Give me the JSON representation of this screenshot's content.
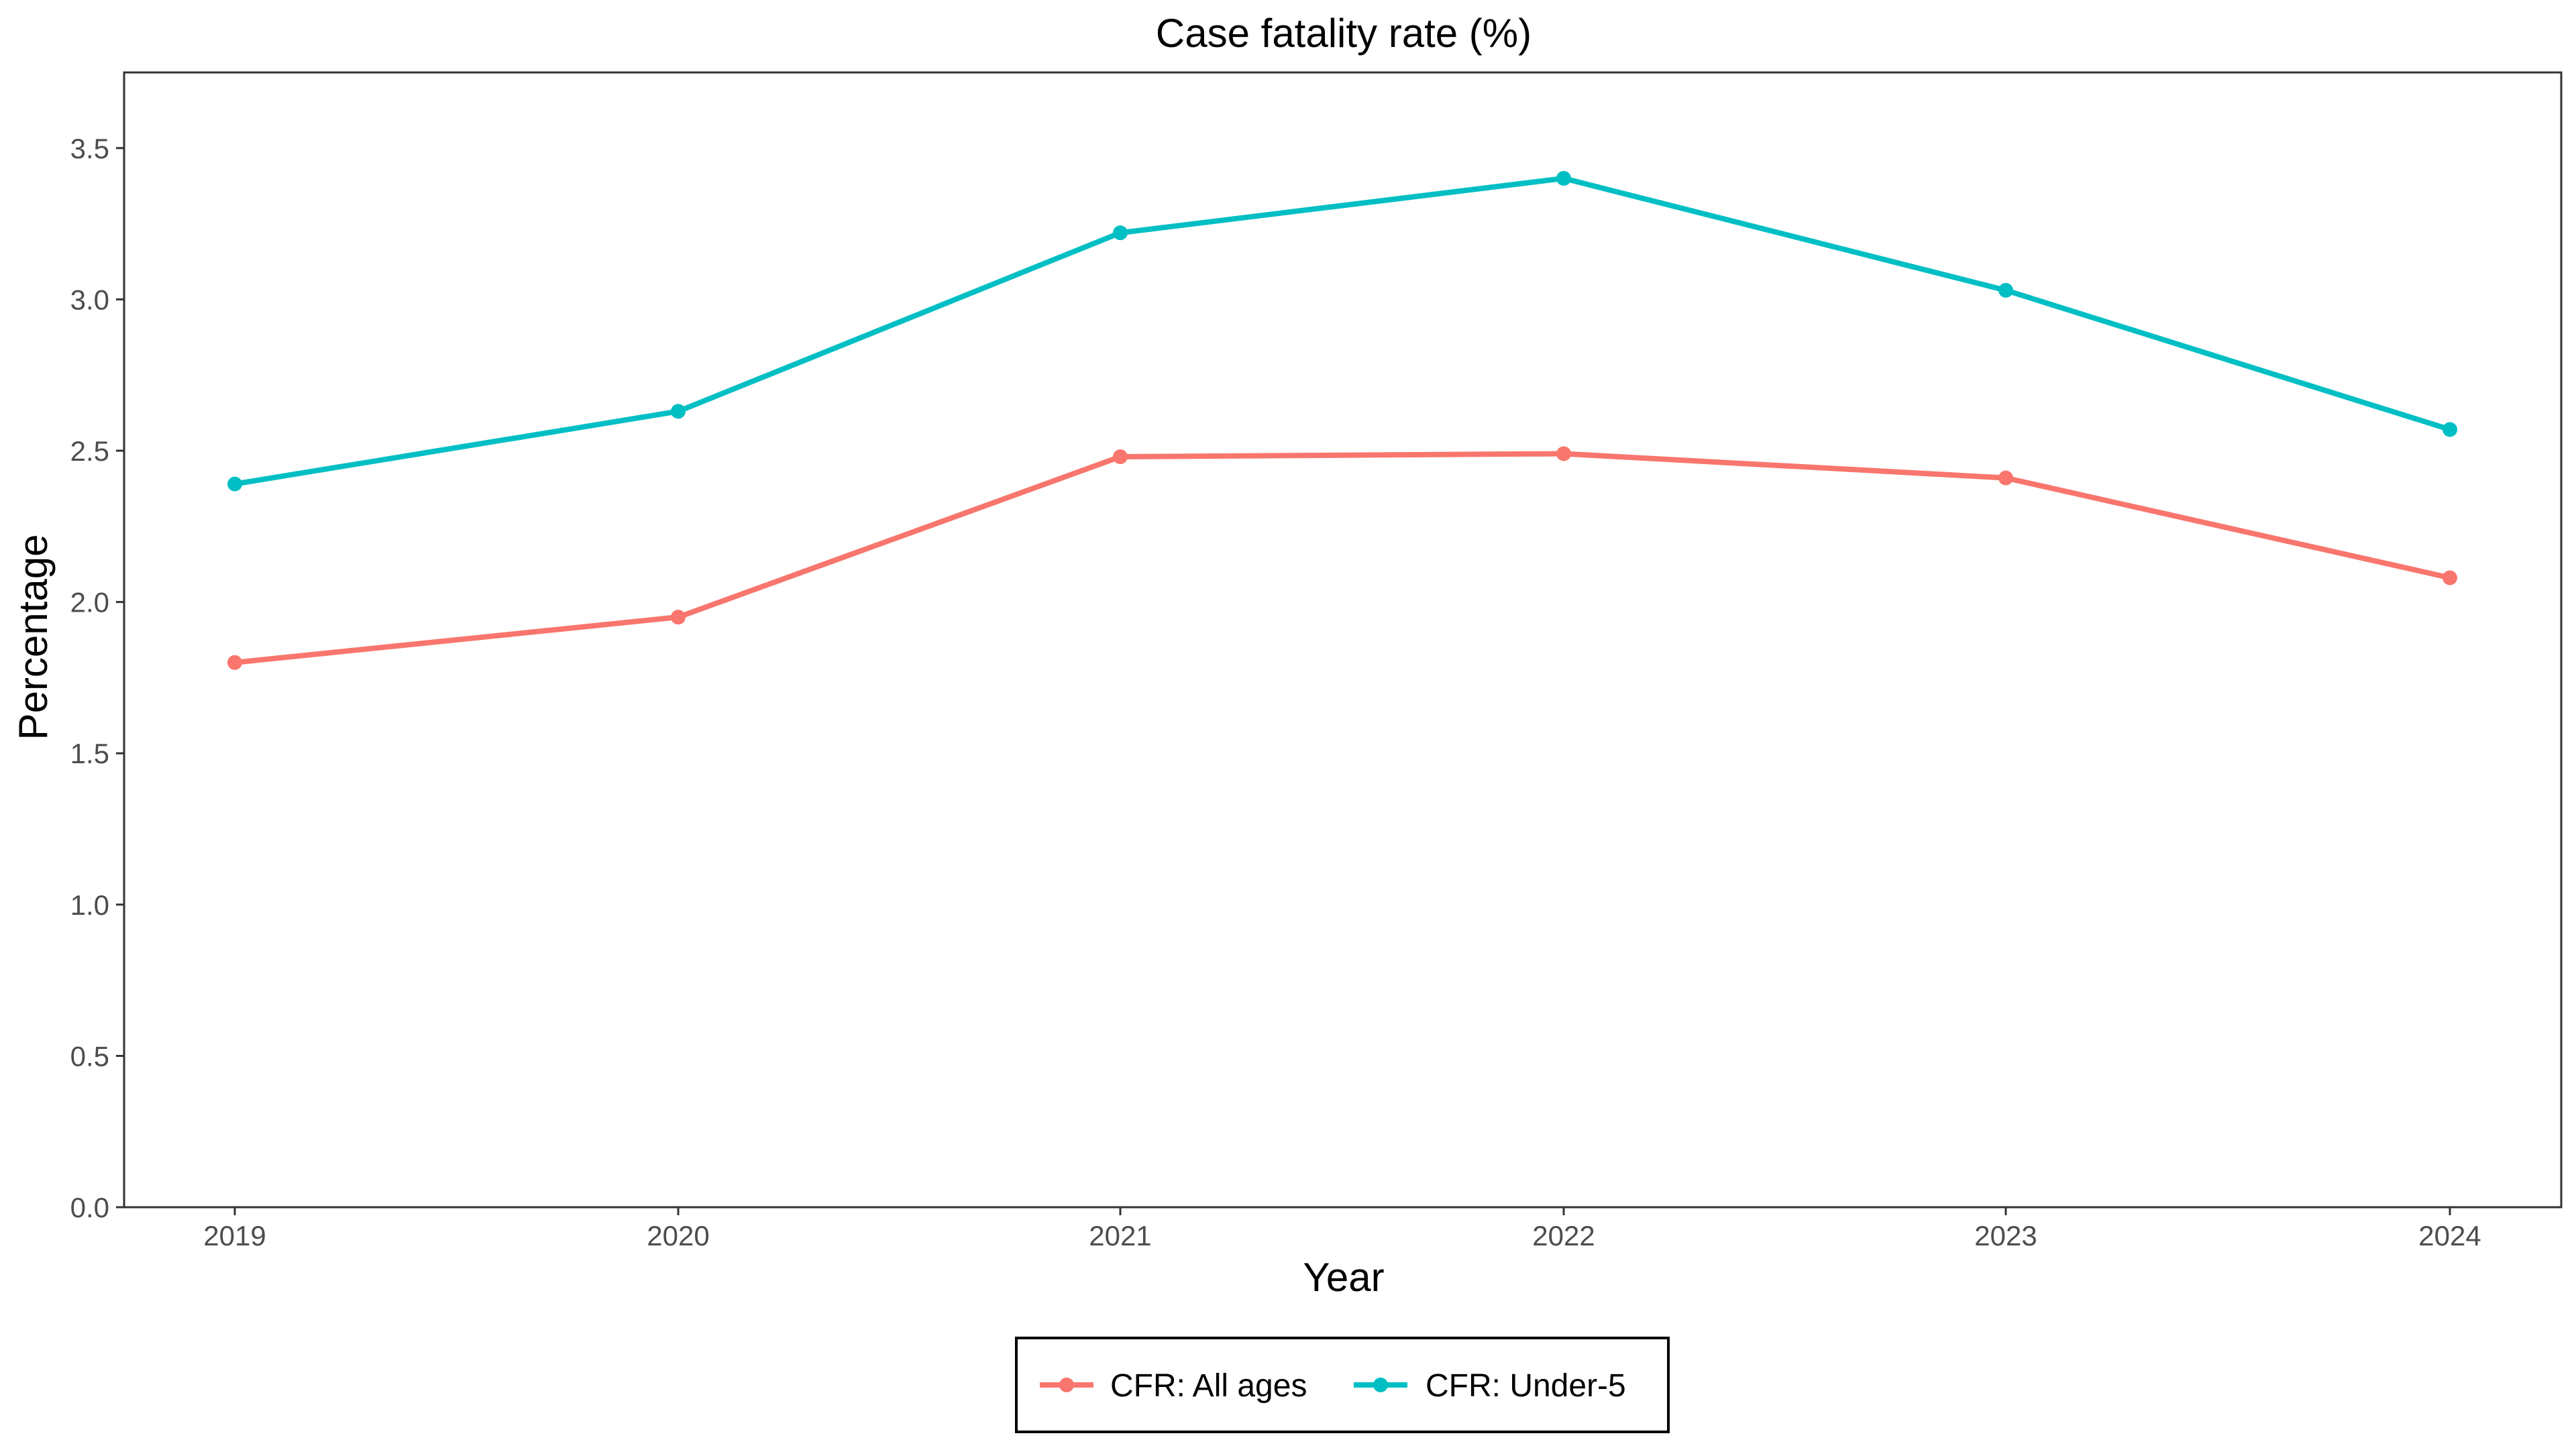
{
  "chart_data": {
    "type": "line",
    "title": "Case fatality rate (%)",
    "xlabel": "Year",
    "ylabel": "Percentage",
    "x": [
      "2019",
      "2020",
      "2021",
      "2022",
      "2023",
      "2024"
    ],
    "yticks": [
      "0.0",
      "0.5",
      "1.0",
      "1.5",
      "2.0",
      "2.5",
      "3.0",
      "3.5"
    ],
    "ylim": [
      0,
      3.75
    ],
    "grid": false,
    "legend_position": "bottom",
    "series": [
      {
        "name": "CFR: All ages",
        "color": "#F8766D",
        "values": [
          1.8,
          1.95,
          2.48,
          2.49,
          2.41,
          2.08
        ]
      },
      {
        "name": "CFR: Under-5",
        "color": "#00BFC4",
        "values": [
          2.39,
          2.63,
          3.22,
          3.4,
          3.03,
          2.57
        ]
      }
    ]
  }
}
